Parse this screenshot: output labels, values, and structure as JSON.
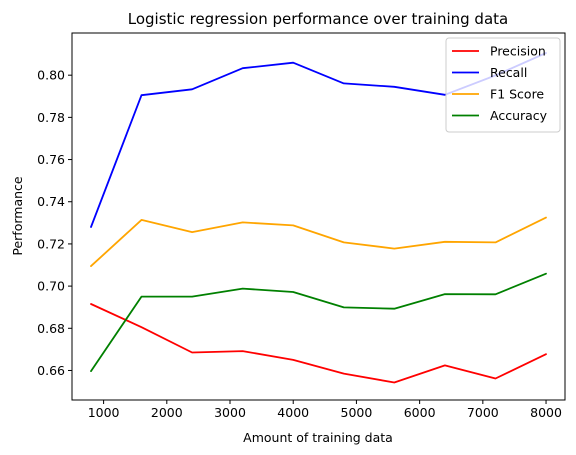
{
  "chart_data": {
    "type": "line",
    "title": "Logistic regression performance over training data",
    "xlabel": "Amount of training data",
    "ylabel": "Performance",
    "xlim": [
      500,
      8300
    ],
    "ylim": [
      0.646,
      0.82
    ],
    "xticks": [
      1000,
      2000,
      3000,
      4000,
      5000,
      6000,
      7000,
      8000
    ],
    "xtick_labels": [
      "1000",
      "2000",
      "3000",
      "4000",
      "5000",
      "6000",
      "7000",
      "8000"
    ],
    "yticks": [
      0.66,
      0.68,
      0.7,
      0.72,
      0.74,
      0.76,
      0.78,
      0.8
    ],
    "ytick_labels": [
      "0.66",
      "0.68",
      "0.70",
      "0.72",
      "0.74",
      "0.76",
      "0.78",
      "0.80"
    ],
    "x": [
      800,
      1600,
      2400,
      3200,
      4000,
      4800,
      5600,
      6400,
      7200,
      8000
    ],
    "series": [
      {
        "name": "Precision",
        "color": "#ff0000",
        "values": [
          0.6915,
          0.6805,
          0.6685,
          0.6692,
          0.665,
          0.6585,
          0.6543,
          0.6624,
          0.6562,
          0.6677
        ]
      },
      {
        "name": "Recall",
        "color": "#0000ff",
        "values": [
          0.728,
          0.7905,
          0.7933,
          0.8033,
          0.8059,
          0.7961,
          0.7945,
          0.7907,
          0.7999,
          0.8105
        ]
      },
      {
        "name": "F1 Score",
        "color": "#ffa500",
        "values": [
          0.7095,
          0.7314,
          0.7256,
          0.7302,
          0.7288,
          0.7207,
          0.7178,
          0.721,
          0.7207,
          0.7325
        ]
      },
      {
        "name": "Accuracy",
        "color": "#008000",
        "values": [
          0.6597,
          0.695,
          0.695,
          0.6988,
          0.6972,
          0.6899,
          0.6893,
          0.6962,
          0.6961,
          0.7059
        ]
      }
    ],
    "legend_position": "top-right",
    "grid": false
  }
}
